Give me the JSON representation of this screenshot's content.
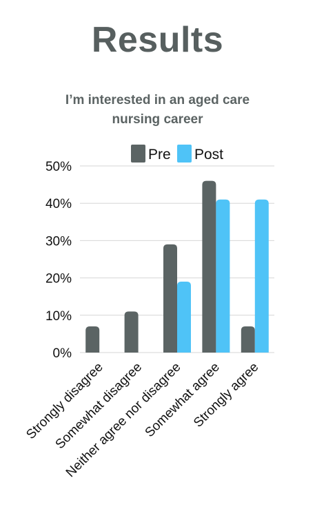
{
  "heading": "Results",
  "chart_data": {
    "type": "bar",
    "title": "I’m interested in an aged care nursing career",
    "title_lines": [
      "I’m interested in an aged care",
      "nursing career"
    ],
    "categories": [
      "Strongly disagree",
      "Somewhat disagree",
      "Neither agree nor disagree",
      "Somewhat agree",
      "Strongly agree"
    ],
    "series": [
      {
        "name": "Pre",
        "color": "#5b6464",
        "values": [
          7,
          11,
          29,
          46,
          7
        ]
      },
      {
        "name": "Post",
        "color": "#4fc3f7",
        "values": [
          0,
          0,
          19,
          41,
          41
        ]
      }
    ],
    "yticks": [
      "0%",
      "10%",
      "20%",
      "30%",
      "40%",
      "50%"
    ],
    "ylim": [
      0,
      50
    ],
    "ylabel": "",
    "xlabel": "",
    "grid": true,
    "legend_position": "top"
  }
}
